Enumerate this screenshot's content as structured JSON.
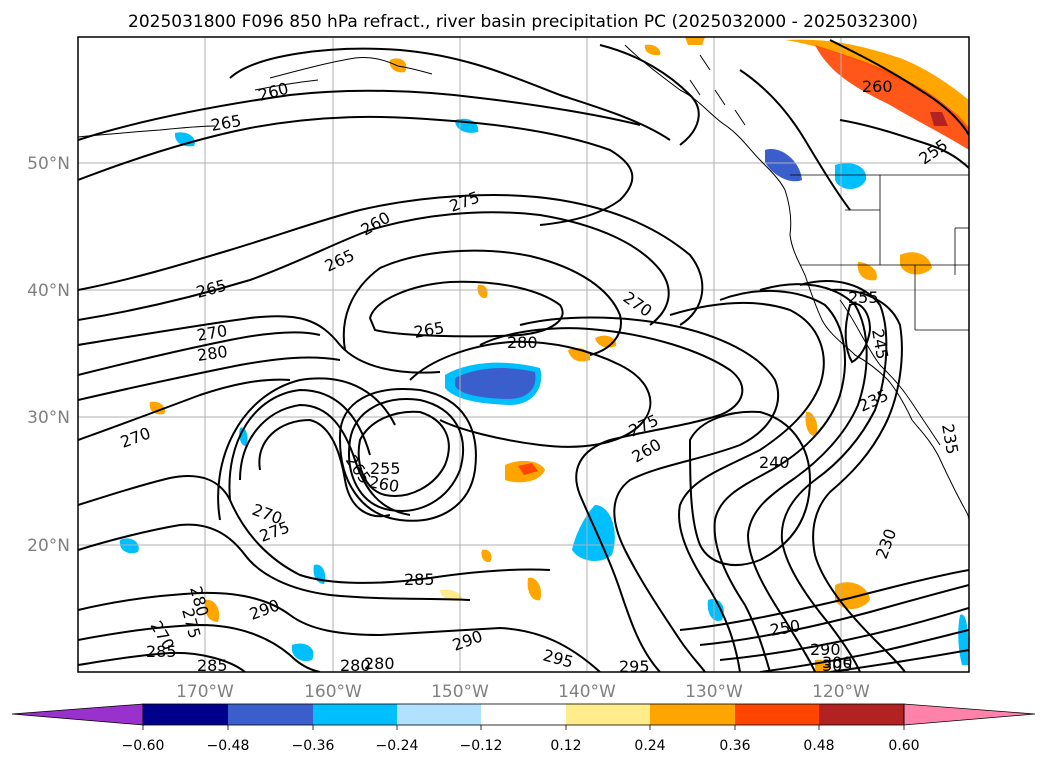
{
  "title": "2025031800 F096 850 hPa refract., river basin precipitation PC (2025032000 - 2025032300)",
  "lat_labels": [
    "50°N",
    "40°N",
    "30°N",
    "20°N"
  ],
  "lon_labels": [
    "170°W",
    "160°W",
    "150°W",
    "140°W",
    "130°W",
    "120°W"
  ],
  "colorbar": {
    "ticks": [
      "−0.60",
      "−0.48",
      "−0.36",
      "−0.24",
      "−0.12",
      "0.12",
      "0.24",
      "0.36",
      "0.48",
      "0.60"
    ],
    "colors": [
      "#9932cc",
      "#00008b",
      "#3a5fcd",
      "#00bfff",
      "#b0e2ff",
      "#ffffff",
      "#ffec8b",
      "#ffa500",
      "#ff4500",
      "#b22222",
      "#ff82ab"
    ]
  },
  "contour_labels": [
    "260",
    "265",
    "255",
    "260",
    "265",
    "260",
    "275",
    "265",
    "270",
    "265",
    "270",
    "280",
    "270",
    "280",
    "255",
    "245",
    "275",
    "235",
    "260",
    "240",
    "235",
    "265",
    "255",
    "260",
    "270",
    "275",
    "230",
    "285",
    "290",
    "250",
    "285",
    "285",
    "280",
    "280",
    "290",
    "295",
    "295",
    "290",
    "300",
    "305",
    "270",
    "275",
    "280"
  ],
  "colors": {
    "land_border": "#000000",
    "grid": "#b0b0b0"
  }
}
